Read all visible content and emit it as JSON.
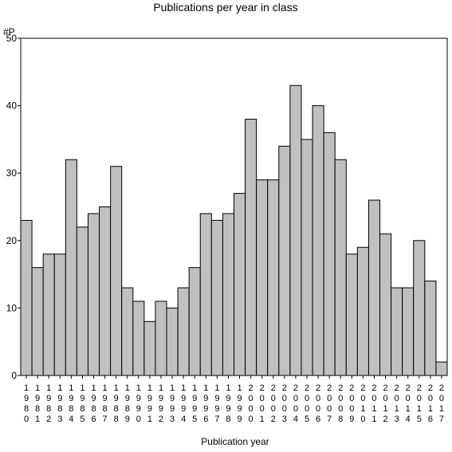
{
  "chart_data": {
    "type": "bar",
    "title": "Publications per year in class",
    "ylabel": "#P",
    "xlabel": "Publication year",
    "ylim": [
      0,
      50
    ],
    "yticks": [
      0,
      10,
      20,
      30,
      40,
      50
    ],
    "categories": [
      "1980",
      "1981",
      "1982",
      "1983",
      "1984",
      "1985",
      "1986",
      "1987",
      "1988",
      "1989",
      "1990",
      "1991",
      "1992",
      "1993",
      "1994",
      "1995",
      "1996",
      "1997",
      "1998",
      "1999",
      "2000",
      "2001",
      "2002",
      "2003",
      "2004",
      "2005",
      "2006",
      "2007",
      "2008",
      "2009",
      "2010",
      "2011",
      "2012",
      "2013",
      "2014",
      "2015",
      "2016",
      "2017"
    ],
    "values": [
      23,
      16,
      18,
      18,
      32,
      22,
      24,
      25,
      31,
      13,
      11,
      8,
      11,
      10,
      13,
      16,
      24,
      23,
      24,
      27,
      38,
      29,
      29,
      34,
      43,
      35,
      40,
      36,
      32,
      18,
      19,
      26,
      21,
      13,
      13,
      20,
      14,
      2
    ],
    "colors": {
      "bar": "#c0c0c0",
      "edge": "#000000"
    }
  }
}
